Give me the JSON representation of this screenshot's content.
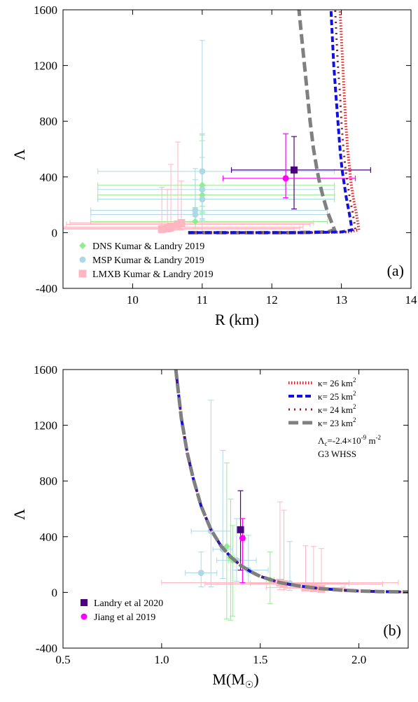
{
  "chart_data": [
    {
      "type": "scatter",
      "panel_label": "(a)",
      "xlabel": "R (km)",
      "ylabel": "Λ",
      "xlim": [
        9,
        14
      ],
      "ylim": [
        -400,
        1600
      ],
      "xticks": [
        10,
        11,
        12,
        13,
        14
      ],
      "yticks": [
        -400,
        0,
        400,
        800,
        1200,
        1600
      ],
      "legend_position": "bottom-left",
      "curves": [
        {
          "style": "gray-dash",
          "color": "#808080",
          "points": [
            [
              10.8,
              0
            ],
            [
              12.3,
              0
            ],
            [
              12.8,
              5
            ],
            [
              12.9,
              20
            ],
            [
              12.87,
              60
            ],
            [
              12.8,
              150
            ],
            [
              12.74,
              250
            ],
            [
              12.69,
              350
            ],
            [
              12.65,
              450
            ],
            [
              12.6,
              600
            ],
            [
              12.55,
              800
            ],
            [
              12.51,
              1000
            ],
            [
              12.47,
              1200
            ],
            [
              12.43,
              1400
            ],
            [
              12.39,
              1600
            ]
          ]
        },
        {
          "style": "red-dots",
          "color": "#e02020",
          "points": [
            [
              10.8,
              0
            ],
            [
              12.6,
              0
            ],
            [
              13.1,
              5
            ],
            [
              13.25,
              20
            ],
            [
              13.24,
              60
            ],
            [
              13.21,
              150
            ],
            [
              13.17,
              250
            ],
            [
              13.14,
              350
            ],
            [
              13.12,
              450
            ],
            [
              13.09,
              600
            ],
            [
              13.06,
              800
            ],
            [
              13.04,
              1000
            ],
            [
              13.02,
              1200
            ],
            [
              13.0,
              1400
            ],
            [
              12.98,
              1600
            ]
          ]
        },
        {
          "style": "maroon-dots",
          "color": "#8b1a1a",
          "points": [
            [
              10.8,
              0
            ],
            [
              12.5,
              0
            ],
            [
              13.05,
              5
            ],
            [
              13.2,
              20
            ],
            [
              13.19,
              60
            ],
            [
              13.16,
              150
            ],
            [
              13.12,
              250
            ],
            [
              13.09,
              350
            ],
            [
              13.06,
              450
            ],
            [
              13.03,
              600
            ],
            [
              13.0,
              800
            ],
            [
              12.98,
              1000
            ],
            [
              12.95,
              1200
            ],
            [
              12.93,
              1400
            ],
            [
              12.91,
              1600
            ]
          ]
        },
        {
          "style": "blue-dash",
          "color": "#1010e0",
          "points": [
            [
              10.8,
              0
            ],
            [
              12.4,
              0
            ],
            [
              13.0,
              5
            ],
            [
              13.15,
              20
            ],
            [
              13.14,
              60
            ],
            [
              13.11,
              150
            ],
            [
              13.07,
              250
            ],
            [
              13.04,
              350
            ],
            [
              13.01,
              450
            ],
            [
              12.98,
              600
            ],
            [
              12.95,
              800
            ],
            [
              12.92,
              1000
            ],
            [
              12.89,
              1200
            ],
            [
              12.87,
              1400
            ],
            [
              12.85,
              1600
            ]
          ]
        }
      ],
      "points": [
        {
          "set": "DNS",
          "x": 11.0,
          "y": 340,
          "xerr": [
            1.5,
            1.9
          ],
          "yerr": [
            150,
            370
          ]
        },
        {
          "set": "DNS",
          "x": 11.0,
          "y": 270,
          "xerr": [
            1.5,
            1.9
          ],
          "yerr": [
            120,
            430
          ]
        },
        {
          "set": "DNS",
          "x": 11.0,
          "y": 240,
          "xerr": [
            1.5,
            1.9
          ],
          "yerr": [
            100,
            420
          ]
        },
        {
          "set": "DNS",
          "x": 10.9,
          "y": 80,
          "xerr": [
            1.5,
            1.9
          ],
          "yerr": [
            50,
            100
          ]
        },
        {
          "set": "MSP",
          "x": 11.0,
          "y": 440,
          "xerr": [
            1.5,
            1.9
          ],
          "yerr": [
            440,
            940
          ]
        },
        {
          "set": "MSP",
          "x": 11.0,
          "y": 310,
          "xerr": [
            1.5,
            1.9
          ],
          "yerr": [
            210,
            400
          ]
        },
        {
          "set": "MSP",
          "x": 11.0,
          "y": 240,
          "xerr": [
            1.5,
            1.9
          ],
          "yerr": [
            150,
            300
          ]
        },
        {
          "set": "MSP",
          "x": 10.9,
          "y": 160,
          "xerr": [
            1.5,
            1.9
          ],
          "yerr": [
            100,
            300
          ]
        },
        {
          "set": "MSP",
          "x": 10.9,
          "y": 130,
          "xerr": [
            1.5,
            1.9
          ],
          "yerr": [
            90,
            250
          ]
        },
        {
          "set": "LMXB",
          "x": 10.7,
          "y": 70,
          "xerr": [
            1.6,
            1.9
          ],
          "yerr": [
            50,
            300
          ]
        },
        {
          "set": "LMXB",
          "x": 10.65,
          "y": 60,
          "xerr": [
            1.6,
            1.9
          ],
          "yerr": [
            40,
            590
          ]
        },
        {
          "set": "LMXB",
          "x": 10.55,
          "y": 40,
          "xerr": [
            1.6,
            1.9
          ],
          "yerr": [
            30,
            450
          ]
        },
        {
          "set": "LMXB",
          "x": 10.5,
          "y": 30,
          "xerr": [
            1.6,
            1.9
          ],
          "yerr": [
            20,
            280
          ]
        },
        {
          "set": "LMXB",
          "x": 10.42,
          "y": 25,
          "xerr": [
            1.6,
            1.9
          ],
          "yerr": [
            15,
            300
          ]
        },
        {
          "set": "Landry",
          "x": 12.32,
          "y": 450,
          "xerr": [
            0.9,
            1.1
          ],
          "yerr": [
            280,
            240
          ]
        },
        {
          "set": "Jiang",
          "x": 12.2,
          "y": 390,
          "xerr": [
            0.9,
            1.0
          ],
          "yerr": [
            140,
            320
          ]
        }
      ],
      "legend": [
        {
          "set": "DNS",
          "label": "DNS Kumar & Landry 2019"
        },
        {
          "set": "MSP",
          "label": "MSP Kumar & Landry 2019"
        },
        {
          "set": "LMXB",
          "label": "LMXB Kumar & Landry 2019"
        }
      ]
    },
    {
      "type": "scatter",
      "panel_label": "(b)",
      "xlabel": "M(M",
      "xlabel_sub": "☉",
      "xlabel_tail": ")",
      "ylabel": "Λ",
      "xlim": [
        0.5,
        2.25
      ],
      "ylim": [
        -400,
        1600
      ],
      "xticks": [
        0.5,
        1.0,
        1.5,
        2.0
      ],
      "xtick_labels": [
        "0.5",
        "1.0",
        "1.5",
        "2.0"
      ],
      "yticks": [
        -400,
        0,
        400,
        800,
        1200,
        1600
      ],
      "legend_position": "top-right",
      "curves": [
        {
          "style": "red-dots",
          "color": "#e02020",
          "points": [
            [
              1.072,
              1600
            ],
            [
              1.1,
              1250
            ],
            [
              1.13,
              1000
            ],
            [
              1.16,
              820
            ],
            [
              1.2,
              620
            ],
            [
              1.25,
              450
            ],
            [
              1.3,
              335
            ],
            [
              1.35,
              255
            ],
            [
              1.4,
              195
            ],
            [
              1.45,
              150
            ],
            [
              1.5,
              115
            ],
            [
              1.6,
              70
            ],
            [
              1.7,
              45
            ],
            [
              1.8,
              28
            ],
            [
              1.9,
              17
            ],
            [
              2.0,
              10
            ],
            [
              2.1,
              6
            ],
            [
              2.25,
              3
            ]
          ]
        },
        {
          "style": "blue-dash",
          "color": "#1010e0",
          "points": [
            [
              1.072,
              1600
            ],
            [
              1.1,
              1250
            ],
            [
              1.13,
              1000
            ],
            [
              1.16,
              820
            ],
            [
              1.2,
              620
            ],
            [
              1.25,
              450
            ],
            [
              1.3,
              335
            ],
            [
              1.35,
              255
            ],
            [
              1.4,
              195
            ],
            [
              1.45,
              150
            ],
            [
              1.5,
              115
            ],
            [
              1.6,
              70
            ],
            [
              1.7,
              45
            ],
            [
              1.8,
              28
            ],
            [
              1.9,
              17
            ],
            [
              2.0,
              10
            ],
            [
              2.1,
              6
            ],
            [
              2.25,
              3
            ]
          ]
        },
        {
          "style": "maroon-dots",
          "color": "#8b1a1a",
          "points": [
            [
              1.072,
              1600
            ],
            [
              1.1,
              1250
            ],
            [
              1.13,
              1000
            ],
            [
              1.16,
              820
            ],
            [
              1.2,
              620
            ],
            [
              1.25,
              450
            ],
            [
              1.3,
              335
            ],
            [
              1.35,
              255
            ],
            [
              1.4,
              195
            ],
            [
              1.45,
              150
            ],
            [
              1.5,
              115
            ],
            [
              1.6,
              70
            ],
            [
              1.7,
              45
            ],
            [
              1.8,
              28
            ],
            [
              1.9,
              17
            ],
            [
              2.0,
              10
            ],
            [
              2.1,
              6
            ],
            [
              2.25,
              3
            ]
          ]
        },
        {
          "style": "gray-dash",
          "color": "#808080",
          "points": [
            [
              1.072,
              1600
            ],
            [
              1.1,
              1250
            ],
            [
              1.13,
              1000
            ],
            [
              1.16,
              820
            ],
            [
              1.2,
              620
            ],
            [
              1.25,
              450
            ],
            [
              1.3,
              335
            ],
            [
              1.35,
              255
            ],
            [
              1.4,
              195
            ],
            [
              1.45,
              150
            ],
            [
              1.5,
              115
            ],
            [
              1.6,
              70
            ],
            [
              1.7,
              45
            ],
            [
              1.8,
              28
            ],
            [
              1.9,
              17
            ],
            [
              2.0,
              10
            ],
            [
              2.1,
              6
            ],
            [
              2.25,
              3
            ]
          ]
        }
      ],
      "points": [
        {
          "set": "DNS",
          "x": 1.33,
          "y": 330,
          "xerr": [
            0.02,
            0.02
          ],
          "yerr": [
            520,
            600
          ]
        },
        {
          "set": "DNS",
          "x": 1.35,
          "y": 250,
          "xerr": [
            0.02,
            0.02
          ],
          "yerr": [
            450,
            420
          ]
        },
        {
          "set": "DNS",
          "x": 1.36,
          "y": 230,
          "xerr": [
            0.02,
            0.02
          ],
          "yerr": [
            400,
            250
          ]
        },
        {
          "set": "DNS",
          "x": 1.55,
          "y": 90,
          "xerr": [
            0.02,
            0.02
          ],
          "yerr": [
            170,
            200
          ]
        },
        {
          "set": "MSP",
          "x": 1.25,
          "y": 440,
          "xerr": [
            0.1,
            0.1
          ],
          "yerr": [
            400,
            940
          ]
        },
        {
          "set": "MSP",
          "x": 1.31,
          "y": 310,
          "xerr": [
            0.05,
            0.05
          ],
          "yerr": [
            210,
            710
          ]
        },
        {
          "set": "MSP",
          "x": 1.38,
          "y": 230,
          "xerr": [
            0.1,
            0.1
          ],
          "yerr": [
            150,
            300
          ]
        },
        {
          "set": "MSP",
          "x": 1.44,
          "y": 160,
          "xerr": [
            0.08,
            0.1
          ],
          "yerr": [
            100,
            250
          ]
        },
        {
          "set": "MSP",
          "x": 1.2,
          "y": 140,
          "xerr": [
            0.08,
            0.08
          ],
          "yerr": [
            100,
            150
          ]
        },
        {
          "set": "MSP",
          "x": 1.65,
          "y": 65,
          "xerr": [
            0.2,
            0.3
          ],
          "yerr": [
            50,
            300
          ]
        },
        {
          "set": "LMXB",
          "x": 1.6,
          "y": 70,
          "xerr": [
            0.6,
            0.6
          ],
          "yerr": [
            50,
            580
          ]
        },
        {
          "set": "LMXB",
          "x": 1.62,
          "y": 60,
          "xerr": [
            0.4,
            0.5
          ],
          "yerr": [
            40,
            530
          ]
        },
        {
          "set": "LMXB",
          "x": 1.73,
          "y": 35,
          "xerr": [
            0.2,
            0.2
          ],
          "yerr": [
            20,
            300
          ]
        },
        {
          "set": "LMXB",
          "x": 1.77,
          "y": 30,
          "xerr": [
            0.15,
            0.15
          ],
          "yerr": [
            15,
            300
          ]
        },
        {
          "set": "LMXB",
          "x": 1.81,
          "y": 25,
          "xerr": [
            0.1,
            0.1
          ],
          "yerr": [
            15,
            290
          ]
        },
        {
          "set": "Landry",
          "x": 1.4,
          "y": 450,
          "xerr": [
            0.01,
            0.01
          ],
          "yerr": [
            290,
            280
          ]
        },
        {
          "set": "Jiang",
          "x": 1.41,
          "y": 390,
          "xerr": [
            0.01,
            0.01
          ],
          "yerr": [
            320,
            140
          ]
        }
      ],
      "legend": [
        {
          "style": "red-dots",
          "label": "κ= 26 km",
          "sup": "2"
        },
        {
          "style": "blue-dash",
          "label": "κ= 25 km",
          "sup": "2"
        },
        {
          "style": "maroon-dots",
          "label": "κ= 24 km",
          "sup": "2"
        },
        {
          "style": "gray-dash",
          "label": "κ= 23 km",
          "sup": "2"
        }
      ],
      "legend_note_1_pre": "Λ",
      "legend_note_1_sub": "c",
      "legend_note_1_mid": "=-2.4×10",
      "legend_note_1_sup": "-9",
      "legend_note_1_tail": " m",
      "legend_note_1_sup2": "-2",
      "legend_note_2": "G3 WHSS",
      "legend_points": [
        {
          "set": "Landry",
          "label": "Landry et al 2020"
        },
        {
          "set": "Jiang",
          "label": "Jiang et al 2019"
        }
      ]
    }
  ],
  "colors": {
    "DNS": "#90ee90",
    "MSP": "#add8e6",
    "LMXB": "#ffb6c1",
    "Landry": "#4b0082",
    "Jiang": "#ff00ff"
  }
}
